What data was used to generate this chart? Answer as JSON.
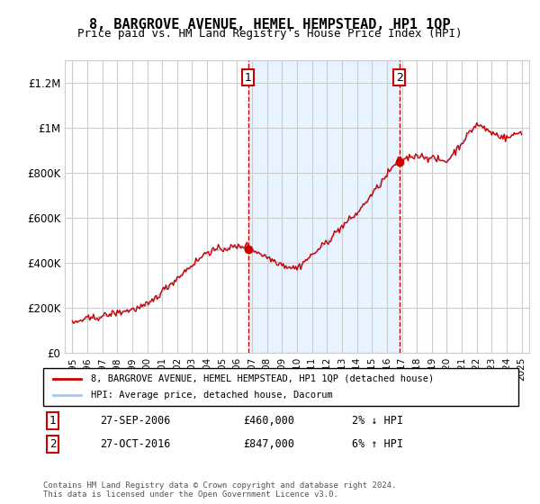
{
  "title": "8, BARGROVE AVENUE, HEMEL HEMPSTEAD, HP1 1QP",
  "subtitle": "Price paid vs. HM Land Registry's House Price Index (HPI)",
  "legend_line1": "8, BARGROVE AVENUE, HEMEL HEMPSTEAD, HP1 1QP (detached house)",
  "legend_line2": "HPI: Average price, detached house, Dacorum",
  "transaction1": {
    "label": "1",
    "date": "27-SEP-2006",
    "price": 460000,
    "hpi_rel": "2% ↓ HPI"
  },
  "transaction2": {
    "label": "2",
    "date": "27-OCT-2016",
    "price": 847000,
    "hpi_rel": "6% ↑ HPI"
  },
  "footnote": "Contains HM Land Registry data © Crown copyright and database right 2024.\nThis data is licensed under the Open Government Licence v3.0.",
  "hpi_color": "#aec6e8",
  "price_color": "#cc0000",
  "marker_color": "#cc0000",
  "vline_color": "#cc0000",
  "shade_color": "#ddeeff",
  "ylim": [
    0,
    1300000
  ],
  "yticks": [
    0,
    200000,
    400000,
    600000,
    800000,
    1000000,
    1200000
  ],
  "ytick_labels": [
    "£0",
    "£200K",
    "£400K",
    "£600K",
    "£800K",
    "£1M",
    "£1.2M"
  ],
  "x_start_year": 1995,
  "x_end_year": 2025,
  "background_color": "#ffffff",
  "grid_color": "#cccccc"
}
